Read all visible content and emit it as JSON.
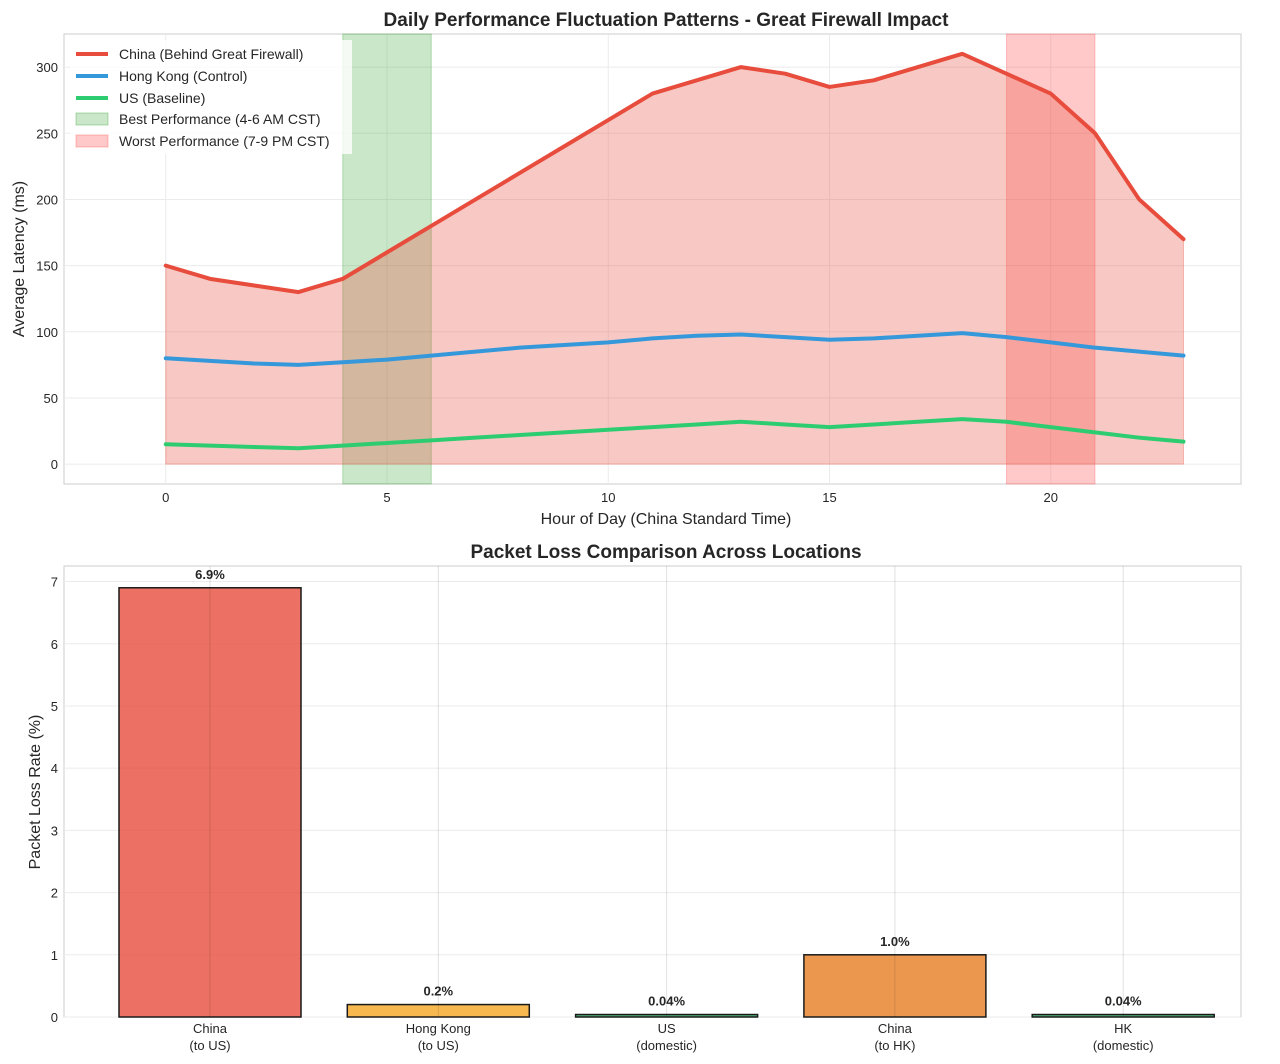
{
  "chart_data": [
    {
      "type": "line",
      "title": "Daily Performance Fluctuation Patterns - Great Firewall Impact",
      "xlabel": "Hour of Day (China Standard Time)",
      "ylabel": "Average Latency (ms)",
      "xlim": [
        -2.3,
        24.3
      ],
      "ylim": [
        -15,
        325
      ],
      "xticks": [
        0,
        5,
        10,
        15,
        20
      ],
      "yticks": [
        0,
        50,
        100,
        150,
        200,
        250,
        300
      ],
      "grid": true,
      "legend_position": "top-left",
      "x": [
        0,
        1,
        2,
        3,
        4,
        5,
        6,
        7,
        8,
        9,
        10,
        11,
        12,
        13,
        14,
        15,
        16,
        17,
        18,
        19,
        20,
        21,
        22,
        23
      ],
      "series": [
        {
          "name": "China (Behind Great Firewall)",
          "color": "#e74c3c",
          "fill_to_zero": true,
          "values": [
            150,
            140,
            135,
            130,
            140,
            160,
            180,
            200,
            220,
            240,
            260,
            280,
            290,
            300,
            295,
            285,
            290,
            300,
            310,
            295,
            280,
            250,
            200,
            170
          ]
        },
        {
          "name": "Hong Kong (Control)",
          "color": "#3498db",
          "values": [
            80,
            78,
            76,
            75,
            77,
            79,
            82,
            85,
            88,
            90,
            92,
            95,
            97,
            98,
            96,
            94,
            95,
            97,
            99,
            96,
            92,
            88,
            85,
            82
          ]
        },
        {
          "name": "US (Baseline)",
          "color": "#2ecc71",
          "values": [
            15,
            14,
            13,
            12,
            14,
            16,
            18,
            20,
            22,
            24,
            26,
            28,
            30,
            32,
            30,
            28,
            30,
            32,
            34,
            32,
            28,
            24,
            20,
            17
          ]
        }
      ],
      "spans": [
        {
          "name": "Best Performance (4-6 AM CST)",
          "from": 4,
          "to": 6,
          "color": "#2ca02c",
          "opacity": 0.25
        },
        {
          "name": "Worst Performance (7-9 PM CST)",
          "from": 19,
          "to": 21,
          "color": "#ff4d4d",
          "opacity": 0.3
        }
      ]
    },
    {
      "type": "bar",
      "title": "Packet Loss Comparison Across Locations",
      "xlabel": "",
      "ylabel": "Packet Loss Rate (%)",
      "ylim": [
        0,
        7.25
      ],
      "yticks": [
        0,
        1,
        2,
        3,
        4,
        5,
        6,
        7
      ],
      "grid": true,
      "categories": [
        [
          "China",
          "(to US)"
        ],
        [
          "Hong Kong",
          "(to US)"
        ],
        [
          "US",
          "(domestic)"
        ],
        [
          "China",
          "(to HK)"
        ],
        [
          "HK",
          "(domestic)"
        ]
      ],
      "values": [
        6.9,
        0.2,
        0.04,
        1.0,
        0.04
      ],
      "value_labels": [
        "6.9%",
        "0.2%",
        "0.04%",
        "1.0%",
        "0.04%"
      ],
      "colors": [
        "#e74c3c",
        "#f5a623",
        "#27ae60",
        "#e67e22",
        "#27ae60"
      ]
    }
  ]
}
